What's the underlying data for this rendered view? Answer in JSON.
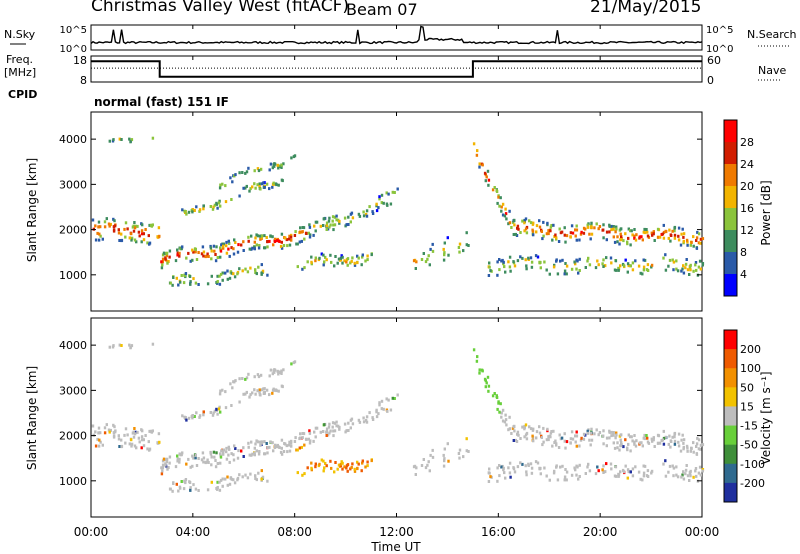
{
  "header": {
    "station": "Christmas Valley West (fitACF)",
    "beam": "Beam 07",
    "date": "21/May/2015"
  },
  "labels": {
    "nsky": "N.Sky",
    "nsearch": "N.Search",
    "freq": "Freq.",
    "freq_unit": "[MHz]",
    "nave": "Nave",
    "cpid": "CPID",
    "cpid_value": "normal (fast) 151 IF"
  },
  "chart_data": [
    {
      "type": "line",
      "name": "noise-panel",
      "yticks_left": [
        "10^5",
        "10^0"
      ],
      "yticks_right": [
        "10^5",
        "10^0"
      ],
      "x_range_hours": [
        0,
        24
      ],
      "sky_level_approx": 0.3,
      "spikes_hours": [
        0.9,
        1.2,
        10.5,
        13.0,
        18.3
      ]
    },
    {
      "type": "line",
      "name": "frequency-panel",
      "yticks_left": [
        "18",
        "8"
      ],
      "yticks_right": [
        "60",
        "0"
      ],
      "freq_segments": [
        {
          "x0": 0,
          "x1": 2.7,
          "mhz": 16
        },
        {
          "x0": 2.7,
          "x1": 15.0,
          "mhz": 10
        },
        {
          "x0": 15.0,
          "x1": 24,
          "mhz": 16
        }
      ],
      "nave_level": 32
    },
    {
      "type": "heatmap",
      "name": "power-panel",
      "ylabel": "Slant Range [km]",
      "yticks": [
        1000,
        2000,
        3000,
        4000
      ],
      "ylim": [
        200,
        4600
      ],
      "colorbar_label": "Power [dB]",
      "colorbar_ticks": [
        28,
        24,
        20,
        16,
        12,
        8,
        4
      ],
      "colorbar_colors": [
        "#0000ff",
        "#2a5aa8",
        "#3d8c5e",
        "#8bc43c",
        "#f2b400",
        "#ef7a00",
        "#d11d00",
        "#ff0000"
      ]
    },
    {
      "type": "heatmap",
      "name": "velocity-panel",
      "ylabel": "Slant Range [km]",
      "yticks": [
        1000,
        2000,
        3000,
        4000
      ],
      "ylim": [
        200,
        4600
      ],
      "colorbar_label": "Velocity [m s⁻¹]",
      "colorbar_ticks": [
        "200",
        "100",
        "50",
        "15",
        "-15",
        "-50",
        "-100",
        "-200"
      ],
      "colorbar_colors": [
        "#1f2f9e",
        "#2f6a8f",
        "#3f8f3a",
        "#68cf3a",
        "#bdbdbd",
        "#f2c200",
        "#f29000",
        "#ef5a00",
        "#ff0000"
      ]
    }
  ],
  "xaxis": {
    "label": "Time UT",
    "ticks": [
      "00:00",
      "04:00",
      "08:00",
      "12:00",
      "16:00",
      "20:00",
      "00:00"
    ]
  }
}
